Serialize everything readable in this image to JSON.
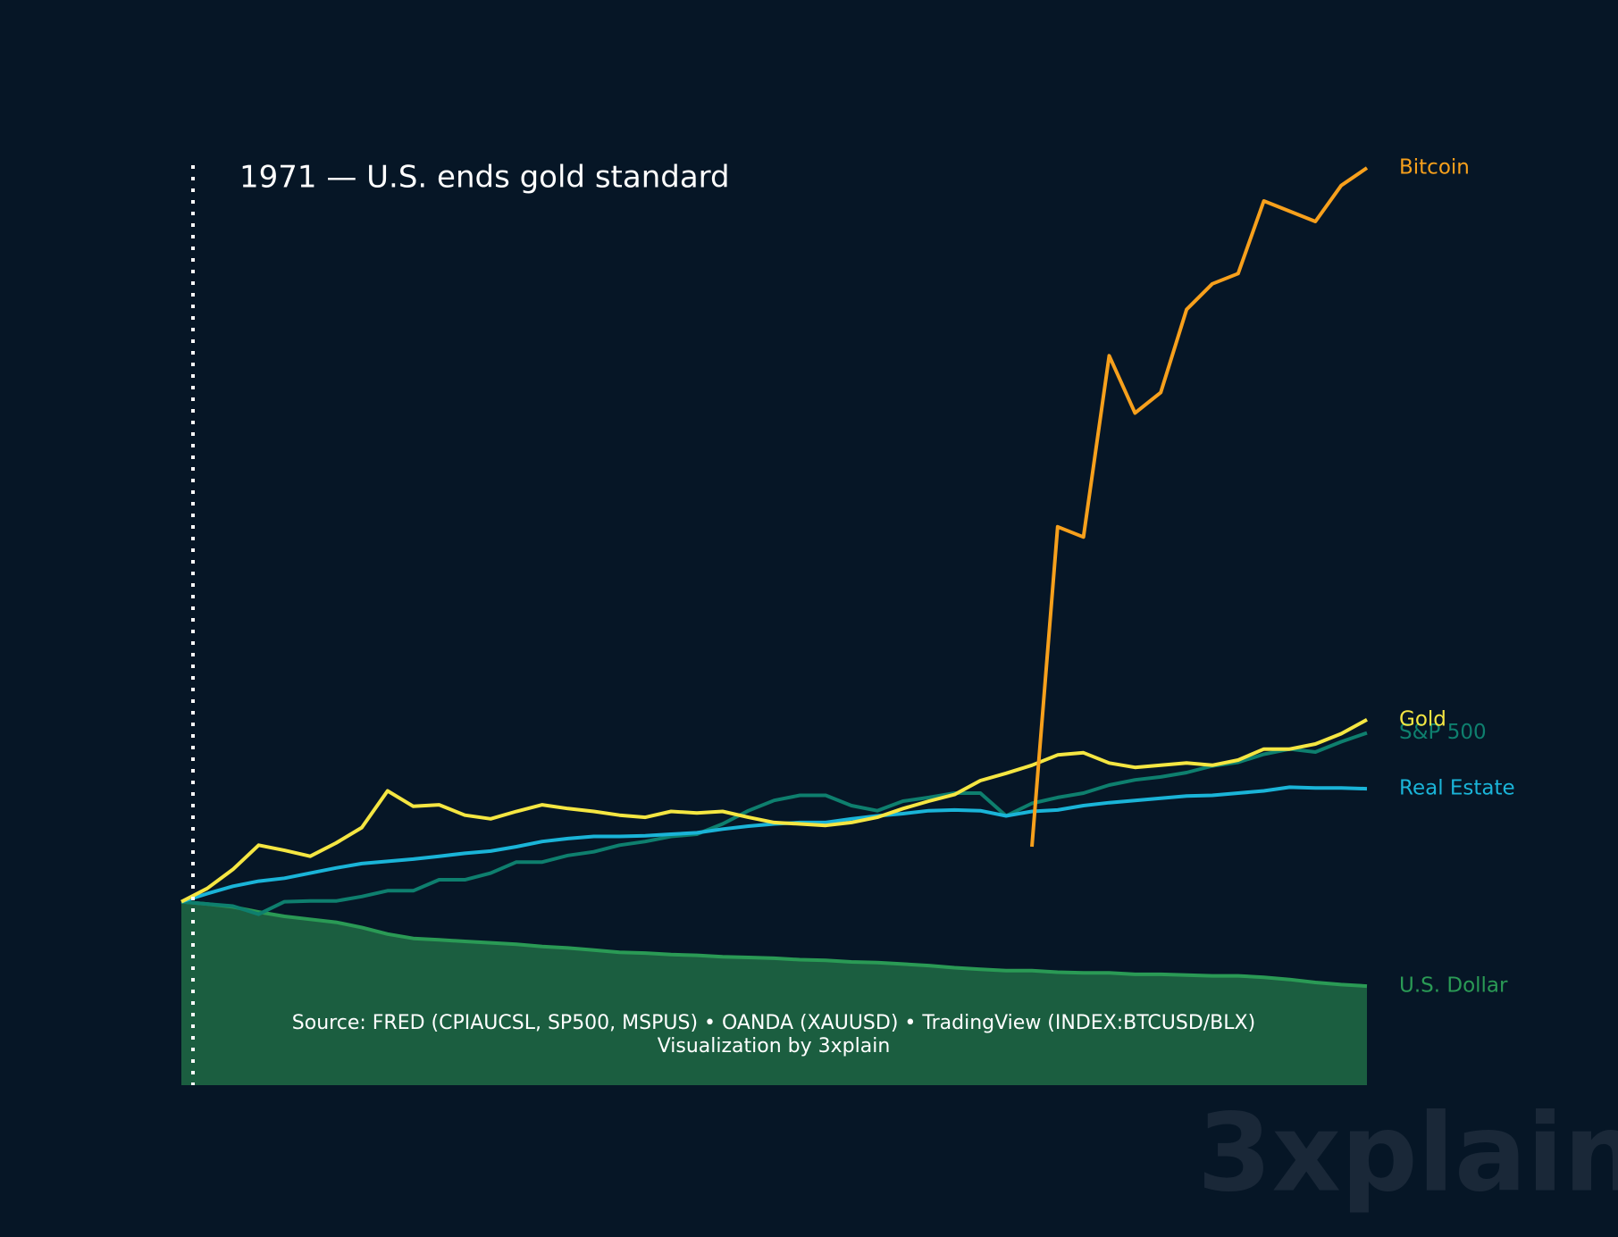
{
  "chart_data": {
    "type": "line",
    "annotation": "1971 — U.S. ends gold standard",
    "source": [
      "Source: FRED (CPIAUCSL, SP500, MSPUS) • OANDA (XAUUSD) • TradingView (INDEX:BTCUSD/BLX)",
      "Visualization by 3xplain"
    ],
    "watermark": "3xplain",
    "ylim": [
      -25,
      100
    ],
    "series": [
      {
        "name": "U.S. Dollar",
        "color": "#2a9a55",
        "fill_color": "#1b5e40",
        "values": [
          0,
          -0.3,
          -0.7,
          -1.4,
          -2.0,
          -2.4,
          -2.8,
          -3.5,
          -4.4,
          -5.0,
          -5.2,
          -5.4,
          -5.6,
          -5.8,
          -6.1,
          -6.3,
          -6.6,
          -6.9,
          -7.0,
          -7.2,
          -7.3,
          -7.5,
          -7.6,
          -7.7,
          -7.9,
          -8.0,
          -8.2,
          -8.3,
          -8.5,
          -8.7,
          -9.0,
          -9.2,
          -9.4,
          -9.4,
          -9.6,
          -9.7,
          -9.7,
          -9.9,
          -9.9,
          -10.0,
          -10.1,
          -10.1,
          -10.3,
          -10.6,
          -11.0,
          -11.3,
          -11.5
        ]
      },
      {
        "name": "S&P 500",
        "color": "#0e7f6e",
        "values": [
          0,
          -0.3,
          -0.6,
          -1.7,
          0,
          0.1,
          0.1,
          0.7,
          1.5,
          1.5,
          3.0,
          3.0,
          3.9,
          5.4,
          5.4,
          6.3,
          6.8,
          7.7,
          8.2,
          8.9,
          9.2,
          10.6,
          12.4,
          13.8,
          14.5,
          14.5,
          13.1,
          12.4,
          13.7,
          14.2,
          14.8,
          14.8,
          11.7,
          13.4,
          14.2,
          14.8,
          15.9,
          16.6,
          17.0,
          17.6,
          18.5,
          19.0,
          20.1,
          20.8,
          20.4,
          21.8,
          23.0
        ]
      },
      {
        "name": "Real Estate",
        "color": "#1ab4d8",
        "values": [
          0,
          1.1,
          2.1,
          2.8,
          3.2,
          3.9,
          4.6,
          5.2,
          5.5,
          5.8,
          6.2,
          6.6,
          6.9,
          7.5,
          8.2,
          8.6,
          8.9,
          8.9,
          9.0,
          9.2,
          9.4,
          9.9,
          10.3,
          10.6,
          10.8,
          10.8,
          11.3,
          11.7,
          12.0,
          12.4,
          12.5,
          12.4,
          11.7,
          12.3,
          12.5,
          13.1,
          13.5,
          13.8,
          14.1,
          14.4,
          14.5,
          14.8,
          15.1,
          15.6,
          15.5,
          15.5,
          15.4
        ]
      },
      {
        "name": "Gold",
        "color": "#f5e642",
        "values": [
          0,
          1.8,
          4.4,
          7.7,
          7.0,
          6.2,
          8.0,
          10.1,
          15.1,
          13.0,
          13.2,
          11.8,
          11.3,
          12.3,
          13.2,
          12.7,
          12.3,
          11.8,
          11.5,
          12.3,
          12.1,
          12.3,
          11.5,
          10.8,
          10.6,
          10.4,
          10.8,
          11.5,
          12.7,
          13.7,
          14.6,
          16.5,
          17.5,
          18.6,
          20.0,
          20.3,
          18.9,
          18.3,
          18.6,
          18.9,
          18.6,
          19.3,
          20.8,
          20.8,
          21.5,
          22.9,
          24.8
        ]
      },
      {
        "name": "Bitcoin",
        "color": "#f7a01c",
        "values": [
          null,
          null,
          null,
          null,
          null,
          null,
          null,
          null,
          null,
          null,
          null,
          null,
          null,
          null,
          null,
          null,
          null,
          null,
          null,
          null,
          null,
          null,
          null,
          null,
          null,
          null,
          null,
          null,
          null,
          null,
          null,
          null,
          null,
          7.5,
          51.1,
          49.7,
          74.4,
          66.6,
          69.4,
          80.7,
          84.2,
          85.6,
          95.5,
          94.1,
          92.7,
          97.6,
          100
        ]
      }
    ]
  }
}
